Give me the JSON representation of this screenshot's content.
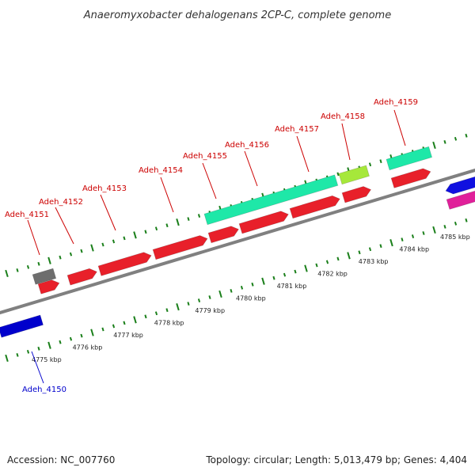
{
  "title": "Anaeromyxobacter dehalogenans 2CP-C, complete genome",
  "footer": {
    "accession": "Accession: NC_007760",
    "summary": "Topology: circular; Length: 5,013,479 bp; Genes: 4,404"
  },
  "colors": {
    "backbone": "#808080",
    "ticks": "#1a7f1a",
    "forward_label": "#cc0000",
    "reverse_label": "#0000cc"
  },
  "scale_labels": [
    "4775 kbp",
    "4776 kbp",
    "4777 kbp",
    "4778 kbp",
    "4779 kbp",
    "4780 kbp",
    "4781 kbp",
    "4782 kbp",
    "4783 kbp",
    "4784 kbp",
    "4785 kbp"
  ],
  "genes": [
    {
      "label": "Adeh_4150",
      "color": "#0000cc",
      "label_color": "#0000cc"
    },
    {
      "label": "Adeh_4151",
      "color": "#e8202a",
      "label_color": "#cc0000"
    },
    {
      "label": "Adeh_4152",
      "color": "#e8202a",
      "label_color": "#cc0000"
    },
    {
      "label": "Adeh_4153",
      "color": "#e8202a",
      "label_color": "#cc0000"
    },
    {
      "label": "Adeh_4154",
      "color": "#e8202a",
      "label_color": "#cc0000"
    },
    {
      "label": "Adeh_4155",
      "color": "#e8202a",
      "label_color": "#cc0000"
    },
    {
      "label": "Adeh_4156",
      "color": "#e8202a",
      "label_color": "#cc0000"
    },
    {
      "label": "Adeh_4157",
      "color": "#e8202a",
      "label_color": "#cc0000"
    },
    {
      "label": "Adeh_4158",
      "color": "#e8202a",
      "label_color": "#cc0000"
    },
    {
      "label": "Adeh_4159",
      "color": "#e8202a",
      "label_color": "#cc0000"
    }
  ],
  "features": [
    {
      "kind": "unlabeled-gene",
      "color": "#6e6e6e"
    },
    {
      "kind": "feature-band",
      "color": "#1ee8a8"
    },
    {
      "kind": "feature-band",
      "color": "#a6e83a"
    },
    {
      "kind": "feature-band",
      "color": "#1ee8a8"
    },
    {
      "kind": "unlabeled-gene",
      "color": "#1010e0"
    },
    {
      "kind": "unlabeled-gene",
      "color": "#e0209a"
    }
  ]
}
